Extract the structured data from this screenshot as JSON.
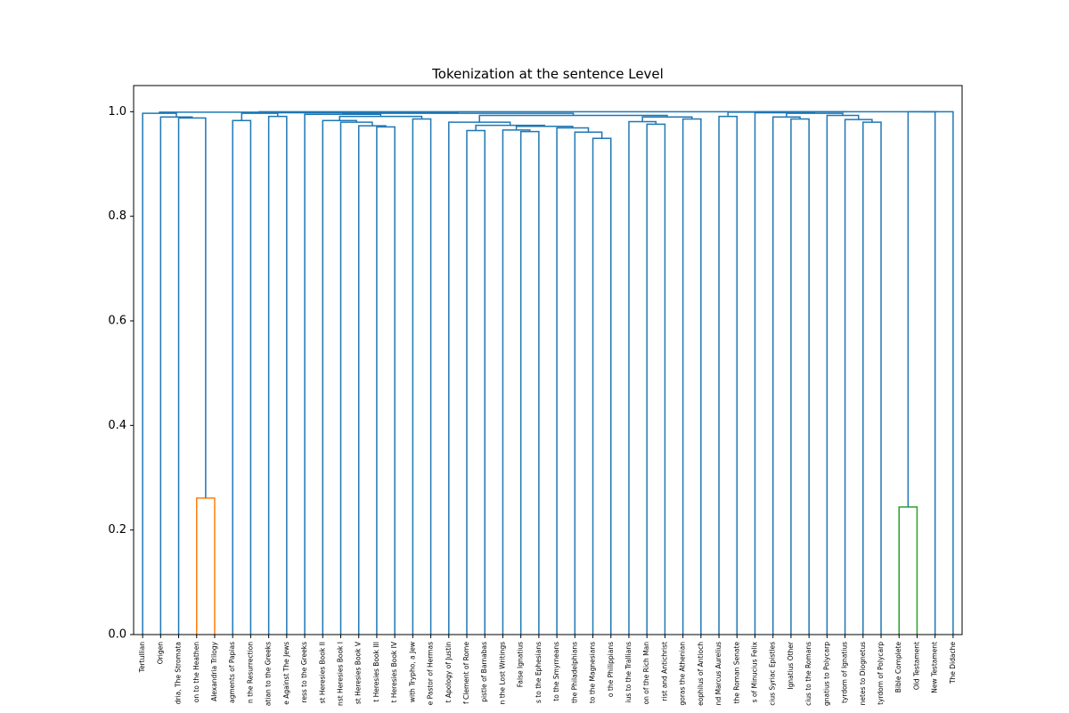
{
  "chart_data": {
    "type": "dendrogram",
    "title": "Tokenization at the sentence Level",
    "leaves": [
      "Tertullian",
      "Origen",
      "dria, The Stromata",
      "on to the Heathen",
      "Alexandria Trilogy",
      "agments of Papias",
      "n the Resurrection",
      "atian to the Greeks",
      "e Against The Jews",
      "ress to the Greeks",
      "st Heresies Book II",
      "nst Heresies Book I",
      "st Heresies Book V",
      "t Heresies Book III",
      "t Heresies Book IV",
      "with Trypho, a Jew",
      "e Pastor of Hermas",
      "t Apology of Justin",
      "f Clement of Rome",
      "pistle of Barnabas",
      "n the Lost Writings",
      "False Ignatius",
      "s to the Ephesians",
      "to the Smyrneans",
      "the Philadelphians",
      "to the Magnesians",
      "o the Philippians",
      "ius to the Trallians",
      "on of the Rich Man",
      "rist and Antichrist",
      "goras the Athenian",
      "eophilus of Antioch",
      "nd Marcus Aurelius",
      "the Roman Senate",
      "s of Minucius Felix",
      "cius Syriac Epistles",
      "Ignatius Other",
      "cius to the Romans",
      "gnatius to Polycarp",
      "tyrdom of Ignatius",
      "netes to Diognetus",
      "tyrdom of Polycarp",
      "Bible Complete",
      "Old Testament",
      "New Testament",
      "The Didache"
    ],
    "link_color": "#1f77b4",
    "merges": [
      {
        "left": 3,
        "right": 4,
        "height": 0.261,
        "color": "#ff7f0e"
      },
      {
        "left": 2,
        "right": 46,
        "height": 0.988
      },
      {
        "left": 1,
        "right": 47,
        "height": 0.99
      },
      {
        "left": 0,
        "right": 48,
        "height": 0.997
      },
      {
        "left": 5,
        "right": 6,
        "height": 0.983
      },
      {
        "left": 7,
        "right": 8,
        "height": 0.991
      },
      {
        "left": 50,
        "right": 51,
        "height": 0.997
      },
      {
        "left": 13,
        "right": 14,
        "height": 0.971
      },
      {
        "left": 12,
        "right": 53,
        "height": 0.973
      },
      {
        "left": 11,
        "right": 54,
        "height": 0.98
      },
      {
        "left": 10,
        "right": 55,
        "height": 0.983
      },
      {
        "left": 15,
        "right": 16,
        "height": 0.986
      },
      {
        "left": 56,
        "right": 57,
        "height": 0.991
      },
      {
        "left": 9,
        "right": 58,
        "height": 0.995
      },
      {
        "left": 18,
        "right": 19,
        "height": 0.964
      },
      {
        "left": 21,
        "right": 22,
        "height": 0.962
      },
      {
        "left": 20,
        "right": 61,
        "height": 0.965
      },
      {
        "left": 25,
        "right": 26,
        "height": 0.949
      },
      {
        "left": 24,
        "right": 63,
        "height": 0.961
      },
      {
        "left": 23,
        "right": 64,
        "height": 0.969
      },
      {
        "left": 62,
        "right": 65,
        "height": 0.972
      },
      {
        "left": 60,
        "right": 66,
        "height": 0.974
      },
      {
        "left": 17,
        "right": 67,
        "height": 0.98
      },
      {
        "left": 28,
        "right": 29,
        "height": 0.976
      },
      {
        "left": 27,
        "right": 69,
        "height": 0.981
      },
      {
        "left": 30,
        "right": 31,
        "height": 0.986
      },
      {
        "left": 70,
        "right": 71,
        "height": 0.99
      },
      {
        "left": 68,
        "right": 72,
        "height": 0.993
      },
      {
        "left": 59,
        "right": 73,
        "height": 0.997
      },
      {
        "left": 52,
        "right": 74,
        "height": 0.998
      },
      {
        "left": 32,
        "right": 33,
        "height": 0.991
      },
      {
        "left": 36,
        "right": 37,
        "height": 0.986
      },
      {
        "left": 35,
        "right": 77,
        "height": 0.99
      },
      {
        "left": 40,
        "right": 41,
        "height": 0.98
      },
      {
        "left": 39,
        "right": 79,
        "height": 0.985
      },
      {
        "left": 38,
        "right": 80,
        "height": 0.993
      },
      {
        "left": 78,
        "right": 81,
        "height": 0.997
      },
      {
        "left": 34,
        "right": 82,
        "height": 0.998
      },
      {
        "left": 42,
        "right": 43,
        "height": 0.244,
        "color": "#2ca02c"
      },
      {
        "left": 49,
        "right": 75,
        "height": 0.999
      },
      {
        "left": 76,
        "right": 83,
        "height": 0.999
      },
      {
        "left": 84,
        "right": 44,
        "height": 1
      },
      {
        "left": 87,
        "right": 45,
        "height": 1
      },
      {
        "left": 86,
        "right": 88,
        "height": 1
      },
      {
        "left": 85,
        "right": 89,
        "height": 1
      }
    ],
    "ylim": [
      0,
      1.05
    ],
    "yticks": [
      {
        "value": 0,
        "label": "0.0"
      },
      0.2,
      0.4,
      0.6,
      0.8,
      {
        "value": 1,
        "label": "1.0"
      }
    ]
  }
}
